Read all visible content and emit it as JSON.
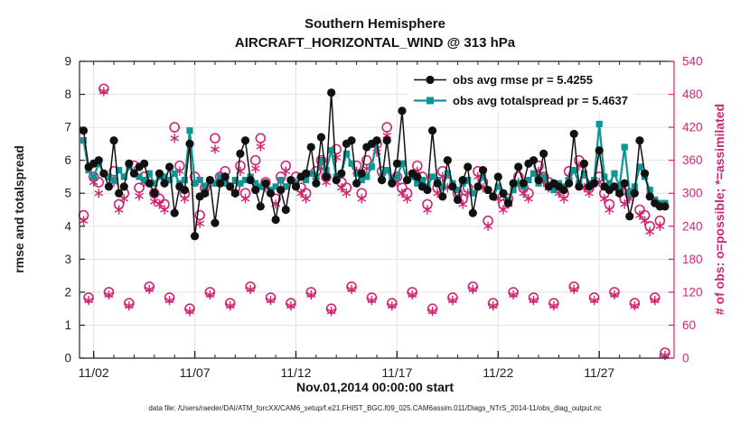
{
  "header": {
    "title": "Southern Hemisphere",
    "subtitle": "AIRCRAFT_HORIZONTAL_WIND @ 313 hPa"
  },
  "footer": {
    "datafile": "data file: /Users/raeder/DAI/ATM_forcXX/CAM6_setup/f.e21.FHIST_BGC.f09_025.CAM6assim.011/Diags_NTrS_2014-11/obs_diag_output.nc"
  },
  "chart_data": {
    "type": "line",
    "title": "Southern Hemisphere",
    "subtitle": "AIRCRAFT_HORIZONTAL_WIND @ 313 hPa",
    "xlabel": "Nov.01,2014 00:00:00 start",
    "ylabel_left": "rmse and totalspread",
    "ylabel_right": "# of obs: o=possible; *=assimilated",
    "xlim": [
      1.3,
      30.7
    ],
    "ylim_left": [
      0,
      9
    ],
    "ylim_right": [
      0,
      540
    ],
    "grid": true,
    "legend_position": "top-right-inside",
    "xticks": {
      "values": [
        2,
        7,
        12,
        17,
        22,
        27
      ],
      "labels": [
        "11/02",
        "11/07",
        "11/12",
        "11/17",
        "11/22",
        "11/27"
      ]
    },
    "yticks_left": [
      0,
      1,
      2,
      3,
      4,
      5,
      6,
      7,
      8,
      9
    ],
    "yticks_right": [
      0,
      60,
      120,
      180,
      240,
      300,
      360,
      420,
      480,
      540
    ],
    "colors": {
      "rmse": "#111111",
      "totalspread": "#0E9594",
      "obs": "#D02670",
      "grid": "#E2E2E2",
      "axis": "#222222"
    },
    "x_start": 1.5,
    "x_step_days": 0.25,
    "series": [
      {
        "key": "rmse",
        "label": "obs avg rmse pr = 5.4255",
        "axis": "left",
        "marker": "filled-circle",
        "pr_value": 5.4255,
        "values": [
          6.9,
          5.8,
          5.9,
          6.0,
          5.6,
          5.2,
          6.6,
          5.0,
          5.2,
          5.9,
          5.6,
          5.8,
          5.9,
          5.3,
          5.0,
          5.6,
          5.3,
          5.8,
          4.4,
          5.2,
          5.1,
          6.5,
          3.7,
          4.9,
          5.0,
          5.4,
          4.1,
          5.3,
          5.5,
          5.2,
          5.0,
          6.2,
          6.6,
          5.4,
          5.1,
          4.6,
          5.3,
          5.0,
          4.2,
          5.1,
          4.5,
          5.4,
          5.2,
          5.5,
          5.6,
          6.4,
          5.3,
          6.7,
          5.5,
          8.05,
          5.4,
          5.6,
          6.5,
          6.6,
          5.3,
          5.6,
          6.4,
          6.5,
          6.6,
          5.4,
          6.6,
          5.3,
          5.9,
          7.5,
          5.4,
          5.6,
          5.5,
          5.2,
          5.1,
          6.9,
          5.3,
          4.9,
          6.0,
          5.2,
          4.8,
          5.4,
          5.8,
          4.4,
          5.2,
          5.7,
          5.1,
          4.9,
          5.5,
          5.0,
          4.7,
          5.3,
          5.8,
          5.3,
          5.9,
          6.0,
          5.4,
          6.2,
          5.2,
          5.3,
          5.2,
          5.1,
          5.3,
          6.8,
          5.2,
          5.9,
          5.2,
          5.3,
          6.3,
          5.2,
          5.1,
          5.2,
          5.0,
          5.3,
          4.3,
          5.0,
          6.6,
          5.6,
          4.9,
          4.7,
          4.6,
          4.6
        ]
      },
      {
        "key": "totalspread",
        "label": "obs avg totalspread pr = 5.4637",
        "axis": "left",
        "marker": "filled-square",
        "pr_value": 5.4637,
        "values": [
          6.6,
          5.7,
          5.5,
          5.9,
          5.6,
          5.5,
          5.4,
          5.7,
          5.5,
          5.8,
          5.6,
          5.5,
          5.4,
          5.6,
          5.3,
          5.5,
          5.5,
          5.4,
          5.6,
          5.3,
          5.4,
          6.9,
          5.3,
          5.4,
          5.2,
          5.4,
          5.3,
          5.5,
          5.3,
          5.2,
          5.4,
          5.3,
          5.4,
          5.5,
          5.3,
          5.2,
          5.3,
          5.1,
          5.2,
          5.4,
          5.2,
          5.4,
          5.3,
          5.5,
          5.4,
          5.6,
          5.5,
          6.0,
          5.7,
          6.3,
          5.5,
          5.6,
          6.2,
          5.9,
          5.6,
          5.4,
          5.5,
          5.8,
          6.6,
          5.5,
          5.7,
          5.4,
          5.5,
          5.9,
          5.4,
          5.5,
          5.3,
          5.4,
          5.2,
          5.5,
          5.4,
          5.2,
          5.6,
          5.3,
          5.1,
          5.3,
          5.4,
          5.0,
          5.2,
          5.5,
          5.1,
          4.9,
          5.2,
          5.0,
          4.8,
          5.1,
          5.3,
          5.2,
          5.4,
          5.6,
          5.3,
          5.5,
          5.2,
          5.1,
          5.3,
          5.2,
          5.4,
          5.7,
          5.3,
          5.6,
          5.3,
          5.4,
          7.1,
          5.5,
          5.3,
          5.6,
          5.2,
          6.4,
          5.0,
          5.2,
          5.8,
          5.5,
          5.1,
          4.8,
          4.7,
          4.7
        ]
      },
      {
        "key": "possible",
        "label": "possible obs",
        "axis": "right",
        "marker": "open-circle",
        "values": [
          260,
          110,
          330,
          320,
          490,
          120,
          340,
          280,
          300,
          100,
          350,
          310,
          330,
          130,
          300,
          290,
          280,
          110,
          420,
          350,
          300,
          90,
          330,
          260,
          310,
          120,
          400,
          330,
          340,
          100,
          310,
          350,
          300,
          130,
          360,
          400,
          320,
          110,
          290,
          330,
          350,
          100,
          330,
          310,
          300,
          120,
          340,
          360,
          330,
          90,
          380,
          320,
          310,
          130,
          350,
          300,
          360,
          110,
          390,
          340,
          420,
          100,
          330,
          310,
          300,
          120,
          350,
          330,
          280,
          90,
          310,
          340,
          320,
          110,
          300,
          290,
          310,
          130,
          340,
          320,
          250,
          100,
          300,
          280,
          290,
          120,
          330,
          310,
          300,
          110,
          350,
          330,
          320,
          100,
          310,
          300,
          340,
          130,
          360,
          320,
          310,
          110,
          330,
          300,
          280,
          120,
          310,
          290,
          300,
          100,
          270,
          260,
          240,
          110,
          250,
          10
        ]
      },
      {
        "key": "assimilated",
        "label": "assimilated obs",
        "axis": "right",
        "marker": "asterisk",
        "values": [
          250,
          105,
          320,
          300,
          485,
          115,
          320,
          270,
          290,
          95,
          340,
          295,
          320,
          125,
          285,
          280,
          270,
          105,
          400,
          340,
          290,
          85,
          320,
          245,
          300,
          115,
          380,
          320,
          330,
          95,
          300,
          340,
          290,
          125,
          345,
          385,
          310,
          105,
          280,
          320,
          340,
          95,
          320,
          300,
          290,
          115,
          330,
          345,
          320,
          85,
          365,
          310,
          300,
          125,
          340,
          290,
          345,
          105,
          375,
          330,
          405,
          95,
          320,
          300,
          290,
          115,
          340,
          320,
          270,
          85,
          300,
          330,
          310,
          105,
          290,
          280,
          300,
          125,
          330,
          310,
          240,
          95,
          290,
          270,
          280,
          115,
          320,
          300,
          290,
          105,
          340,
          320,
          310,
          95,
          300,
          290,
          330,
          125,
          350,
          310,
          300,
          105,
          320,
          290,
          270,
          115,
          300,
          280,
          290,
          95,
          260,
          250,
          230,
          105,
          240,
          5
        ]
      }
    ]
  }
}
